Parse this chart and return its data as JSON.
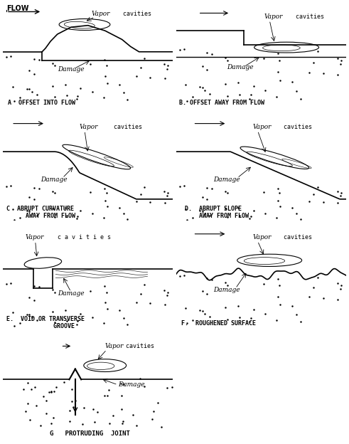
{
  "background": "#ffffff",
  "panels": [
    {
      "id": "A",
      "label": "A  OFFSET INTO FLOW"
    },
    {
      "id": "B",
      "label": "B. OFFSET AWAY FROM FLOW"
    },
    {
      "id": "C",
      "label1": "C  ABRUPT CURVATURE",
      "label2": "    AWAY FROM FLOW"
    },
    {
      "id": "D",
      "label1": "D.  ABRUPT SLOPE",
      "label2": "    AWAY FROM FLOW"
    },
    {
      "id": "E",
      "label1": "E.  VOID OR TRANSVERSE",
      "label2": "        GROOVE"
    },
    {
      "id": "F",
      "label": "F.  ROUGHENED SURFACE"
    },
    {
      "id": "G",
      "label": "G   PROTRUDING  JOINT"
    }
  ]
}
